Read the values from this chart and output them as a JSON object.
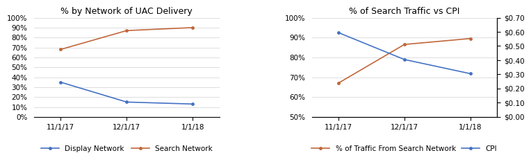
{
  "chart1": {
    "title": "% by Network of UAC Delivery",
    "x_labels": [
      "11/1/17",
      "12/1/17",
      "1/1/18"
    ],
    "display_network": [
      0.35,
      0.15,
      0.13
    ],
    "search_network": [
      0.68,
      0.87,
      0.9
    ],
    "ylim": [
      0.0,
      1.0
    ],
    "yticks": [
      0.0,
      0.1,
      0.2,
      0.3,
      0.4,
      0.5,
      0.6,
      0.7,
      0.8,
      0.9,
      1.0
    ],
    "display_color": "#4472C4",
    "search_color": "#C0673A",
    "legend_labels": [
      "Display Network",
      "Search Network"
    ]
  },
  "chart2": {
    "title": "% of Search Traffic vs CPI",
    "x_labels": [
      "11/1/17",
      "12/1/17",
      "1/1/18"
    ],
    "search_traffic": [
      0.67,
      0.865,
      0.895
    ],
    "cpi_dollars": [
      0.595,
      0.405,
      0.305
    ],
    "ylim_left": [
      0.5,
      1.0
    ],
    "yticks_left": [
      0.5,
      0.6,
      0.7,
      0.8,
      0.9,
      1.0
    ],
    "ylim_right": [
      0.0,
      0.7
    ],
    "yticks_right": [
      0.0,
      0.1,
      0.2,
      0.3,
      0.4,
      0.5,
      0.6,
      0.7
    ],
    "traffic_color": "#C0673A",
    "cpi_color": "#4472C4",
    "legend_labels": [
      "% of Traffic From Search Network",
      "CPI"
    ]
  },
  "background_color": "#FFFFFF",
  "grid_color": "#D0D0D0",
  "title_fontsize": 9,
  "legend_fontsize": 7.5,
  "tick_fontsize": 7.5
}
